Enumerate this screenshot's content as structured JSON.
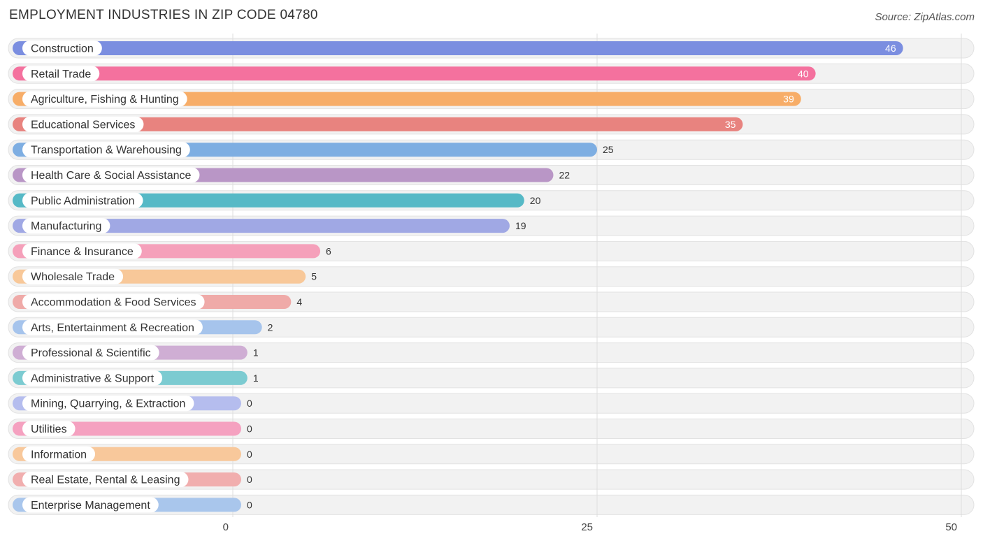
{
  "header": {
    "title": "EMPLOYMENT INDUSTRIES IN ZIP CODE 04780",
    "source": "Source: ZipAtlas.com"
  },
  "chart_data": {
    "type": "bar",
    "orientation": "horizontal",
    "title": "EMPLOYMENT INDUSTRIES IN ZIP CODE 04780",
    "xlim": [
      0,
      50
    ],
    "xticks": [
      0,
      25,
      50
    ],
    "grid": true,
    "categories": [
      "Construction",
      "Retail Trade",
      "Agriculture, Fishing & Hunting",
      "Educational Services",
      "Transportation & Warehousing",
      "Health Care & Social Assistance",
      "Public Administration",
      "Manufacturing",
      "Finance & Insurance",
      "Wholesale Trade",
      "Accommodation & Food Services",
      "Arts, Entertainment & Recreation",
      "Professional & Scientific",
      "Administrative & Support",
      "Mining, Quarrying, & Extraction",
      "Utilities",
      "Information",
      "Real Estate, Rental & Leasing",
      "Enterprise Management"
    ],
    "values": [
      46,
      40,
      39,
      35,
      25,
      22,
      20,
      19,
      6,
      5,
      4,
      2,
      1,
      1,
      0,
      0,
      0,
      0,
      0
    ],
    "colors": [
      "#7b8ee0",
      "#f4719e",
      "#f7ad68",
      "#e8837f",
      "#7eaee2",
      "#b996c6",
      "#56b9c6",
      "#a0a8e4",
      "#f5a0ba",
      "#f8c899",
      "#efaaa8",
      "#a6c4ec",
      "#cfaed4",
      "#7ccbd1",
      "#b5bdee",
      "#f5a1c0",
      "#f8c89b",
      "#f1aeae",
      "#a9c6ec"
    ]
  }
}
